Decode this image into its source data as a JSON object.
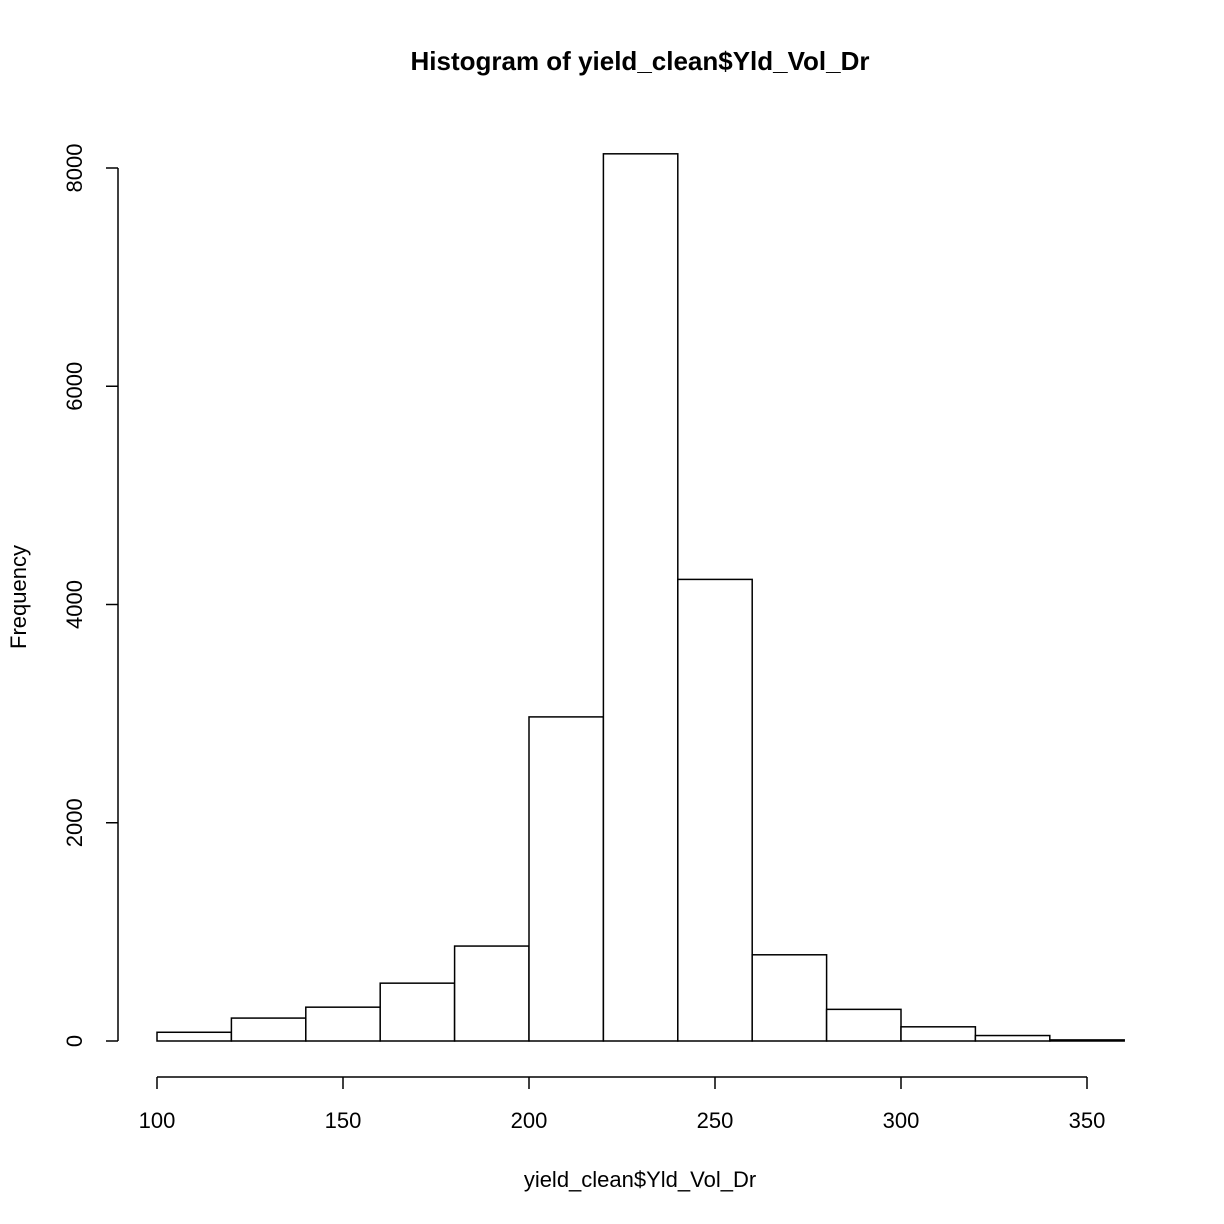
{
  "chart_data": {
    "type": "bar",
    "title": "Histogram of yield_clean$Yld_Vol_Dr",
    "xlabel": "yield_clean$Yld_Vol_Dr",
    "ylabel": "Frequency",
    "bins": [
      {
        "from": 100,
        "to": 120,
        "count": 80
      },
      {
        "from": 120,
        "to": 140,
        "count": 210
      },
      {
        "from": 140,
        "to": 160,
        "count": 310
      },
      {
        "from": 160,
        "to": 180,
        "count": 530
      },
      {
        "from": 180,
        "to": 200,
        "count": 870
      },
      {
        "from": 200,
        "to": 220,
        "count": 2970
      },
      {
        "from": 220,
        "to": 240,
        "count": 8130
      },
      {
        "from": 240,
        "to": 260,
        "count": 4230
      },
      {
        "from": 260,
        "to": 280,
        "count": 790
      },
      {
        "from": 280,
        "to": 300,
        "count": 290
      },
      {
        "from": 300,
        "to": 320,
        "count": 130
      },
      {
        "from": 320,
        "to": 340,
        "count": 50
      },
      {
        "from": 340,
        "to": 360,
        "count": 10
      }
    ],
    "xlim": [
      100,
      360
    ],
    "ylim": [
      0,
      8130
    ],
    "x_ticks": [
      "100",
      "150",
      "200",
      "250",
      "300",
      "350"
    ],
    "y_ticks": [
      "0",
      "2000",
      "4000",
      "6000",
      "8000"
    ],
    "grid": false,
    "legend": "none"
  }
}
